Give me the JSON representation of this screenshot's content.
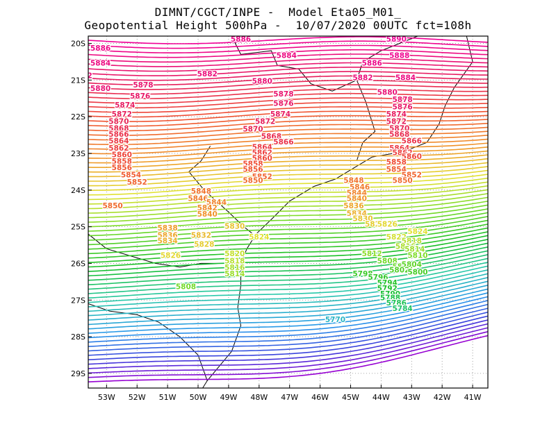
{
  "title_line1": "DIMNT/CGCT/INPE -  Model Eta05_M01_",
  "title_line2": "Geopotential Height 500hPa -  10/07/2020 00UTC fct=108h",
  "map": {
    "lon_range": [
      -53.6,
      -40.5
    ],
    "lat_range": [
      -29.4,
      -19.8
    ],
    "lon_ticks": [
      "53W",
      "52W",
      "51W",
      "50W",
      "49W",
      "48W",
      "47W",
      "46W",
      "45W",
      "44W",
      "43W",
      "42W",
      "41W"
    ],
    "lat_ticks": [
      "20S",
      "21S",
      "22S",
      "23S",
      "24S",
      "25S",
      "26S",
      "27S",
      "28S",
      "29S"
    ],
    "contour_interval_m": 2,
    "contour_range_m": [
      5740,
      5890
    ]
  },
  "contour_labels": [
    {
      "text": "5888",
      "lon": -45.9,
      "lat": -19.75
    },
    {
      "text": "5890",
      "lon": -43.5,
      "lat": -19.95
    },
    {
      "text": "5886",
      "lon": -53.2,
      "lat": -20.2
    },
    {
      "text": "5886",
      "lon": -48.6,
      "lat": -19.95
    },
    {
      "text": "5888",
      "lon": -43.4,
      "lat": -20.4
    },
    {
      "text": "5884",
      "lon": -53.2,
      "lat": -20.6
    },
    {
      "text": "5884",
      "lon": -47.1,
      "lat": -20.4
    },
    {
      "text": "5886",
      "lon": -44.3,
      "lat": -20.6
    },
    {
      "text": "5882",
      "lon": -53.8,
      "lat": -20.95
    },
    {
      "text": "5882",
      "lon": -49.7,
      "lat": -20.9
    },
    {
      "text": "5884",
      "lon": -43.2,
      "lat": -21.0
    },
    {
      "text": "5880",
      "lon": -53.2,
      "lat": -21.3
    },
    {
      "text": "5878",
      "lon": -51.8,
      "lat": -21.2
    },
    {
      "text": "5880",
      "lon": -47.9,
      "lat": -21.1
    },
    {
      "text": "5882",
      "lon": -44.6,
      "lat": -21.0
    },
    {
      "text": "5876",
      "lon": -51.9,
      "lat": -21.5
    },
    {
      "text": "5878",
      "lon": -47.2,
      "lat": -21.45
    },
    {
      "text": "5880",
      "lon": -43.8,
      "lat": -21.4
    },
    {
      "text": "5874",
      "lon": -52.4,
      "lat": -21.75
    },
    {
      "text": "5876",
      "lon": -47.2,
      "lat": -21.7
    },
    {
      "text": "5878",
      "lon": -43.3,
      "lat": -21.6
    },
    {
      "text": "5876",
      "lon": -43.3,
      "lat": -21.8
    },
    {
      "text": "5872",
      "lon": -52.5,
      "lat": -22.0
    },
    {
      "text": "5874",
      "lon": -47.3,
      "lat": -22.0
    },
    {
      "text": "5874",
      "lon": -43.5,
      "lat": -22.0
    },
    {
      "text": "5870",
      "lon": -52.6,
      "lat": -22.2
    },
    {
      "text": "5872",
      "lon": -47.8,
      "lat": -22.2
    },
    {
      "text": "5872",
      "lon": -43.5,
      "lat": -22.2
    },
    {
      "text": "5868",
      "lon": -52.6,
      "lat": -22.38
    },
    {
      "text": "5870",
      "lon": -48.2,
      "lat": -22.4
    },
    {
      "text": "5870",
      "lon": -43.4,
      "lat": -22.38
    },
    {
      "text": "5866",
      "lon": -52.6,
      "lat": -22.55
    },
    {
      "text": "5868",
      "lon": -47.6,
      "lat": -22.6
    },
    {
      "text": "5868",
      "lon": -43.4,
      "lat": -22.55
    },
    {
      "text": "5864",
      "lon": -52.6,
      "lat": -22.73
    },
    {
      "text": "5866",
      "lon": -47.2,
      "lat": -22.75
    },
    {
      "text": "5866",
      "lon": -43.0,
      "lat": -22.73
    },
    {
      "text": "5862",
      "lon": -52.6,
      "lat": -22.92
    },
    {
      "text": "5864",
      "lon": -47.9,
      "lat": -22.9
    },
    {
      "text": "5864",
      "lon": -43.4,
      "lat": -22.92
    },
    {
      "text": "5860",
      "lon": -52.5,
      "lat": -23.1
    },
    {
      "text": "5862",
      "lon": -47.9,
      "lat": -23.05
    },
    {
      "text": "5862",
      "lon": -43.3,
      "lat": -23.05
    },
    {
      "text": "5858",
      "lon": -52.5,
      "lat": -23.28
    },
    {
      "text": "5860",
      "lon": -47.9,
      "lat": -23.2
    },
    {
      "text": "5860",
      "lon": -43.0,
      "lat": -23.15
    },
    {
      "text": "5856",
      "lon": -52.5,
      "lat": -23.45
    },
    {
      "text": "5858",
      "lon": -48.2,
      "lat": -23.35
    },
    {
      "text": "5858",
      "lon": -43.5,
      "lat": -23.3
    },
    {
      "text": "5854",
      "lon": -52.2,
      "lat": -23.65
    },
    {
      "text": "5856",
      "lon": -48.2,
      "lat": -23.5
    },
    {
      "text": "5854",
      "lon": -43.5,
      "lat": -23.5
    },
    {
      "text": "5852",
      "lon": -52.0,
      "lat": -23.85
    },
    {
      "text": "5852",
      "lon": -47.9,
      "lat": -23.7
    },
    {
      "text": "5852",
      "lon": -43.0,
      "lat": -23.65
    },
    {
      "text": "5850",
      "lon": -48.2,
      "lat": -23.8
    },
    {
      "text": "5850",
      "lon": -43.3,
      "lat": -23.8
    },
    {
      "text": "5848",
      "lon": -44.9,
      "lat": -23.8
    },
    {
      "text": "5846",
      "lon": -44.7,
      "lat": -23.98
    },
    {
      "text": "5848",
      "lon": -49.9,
      "lat": -24.1
    },
    {
      "text": "5844",
      "lon": -44.8,
      "lat": -24.15
    },
    {
      "text": "5846",
      "lon": -50.0,
      "lat": -24.3
    },
    {
      "text": "5844",
      "lon": -49.4,
      "lat": -24.4
    },
    {
      "text": "5840",
      "lon": -44.8,
      "lat": -24.3
    },
    {
      "text": "5842",
      "lon": -49.7,
      "lat": -24.55
    },
    {
      "text": "5850",
      "lon": -52.8,
      "lat": -24.5
    },
    {
      "text": "5836",
      "lon": -44.9,
      "lat": -24.5
    },
    {
      "text": "5840",
      "lon": -49.7,
      "lat": -24.72
    },
    {
      "text": "5834",
      "lon": -44.8,
      "lat": -24.7
    },
    {
      "text": "5830",
      "lon": -44.6,
      "lat": -24.85
    },
    {
      "text": "5828",
      "lon": -44.2,
      "lat": -25.0
    },
    {
      "text": "5830",
      "lon": -48.8,
      "lat": -25.05
    },
    {
      "text": "5826",
      "lon": -43.8,
      "lat": -25.0
    },
    {
      "text": "5838",
      "lon": -51.0,
      "lat": -25.1
    },
    {
      "text": "5824",
      "lon": -42.8,
      "lat": -25.2
    },
    {
      "text": "5836",
      "lon": -51.0,
      "lat": -25.3
    },
    {
      "text": "5832",
      "lon": -49.9,
      "lat": -25.3
    },
    {
      "text": "5824",
      "lon": -48.0,
      "lat": -25.35
    },
    {
      "text": "5822",
      "lon": -43.5,
      "lat": -25.35
    },
    {
      "text": "5834",
      "lon": -51.0,
      "lat": -25.45
    },
    {
      "text": "5818",
      "lon": -43.0,
      "lat": -25.45
    },
    {
      "text": "5828",
      "lon": -49.8,
      "lat": -25.55
    },
    {
      "text": "5816",
      "lon": -43.2,
      "lat": -25.6
    },
    {
      "text": "5814",
      "lon": -42.9,
      "lat": -25.68
    },
    {
      "text": "5812",
      "lon": -44.3,
      "lat": -25.8
    },
    {
      "text": "5810",
      "lon": -42.8,
      "lat": -25.85
    },
    {
      "text": "5826",
      "lon": -50.9,
      "lat": -25.85
    },
    {
      "text": "5820",
      "lon": -48.8,
      "lat": -25.8
    },
    {
      "text": "5808",
      "lon": -43.8,
      "lat": -26.0
    },
    {
      "text": "5818",
      "lon": -48.8,
      "lat": -26.0
    },
    {
      "text": "5806",
      "lon": -43.3,
      "lat": -26.15
    },
    {
      "text": "5804",
      "lon": -43.0,
      "lat": -26.1
    },
    {
      "text": "5802",
      "lon": -43.4,
      "lat": -26.25
    },
    {
      "text": "5816",
      "lon": -48.8,
      "lat": -26.18
    },
    {
      "text": "5800",
      "lon": -42.8,
      "lat": -26.3
    },
    {
      "text": "5798",
      "lon": -44.6,
      "lat": -26.35
    },
    {
      "text": "5814",
      "lon": -48.8,
      "lat": -26.35
    },
    {
      "text": "5796",
      "lon": -44.1,
      "lat": -26.45
    },
    {
      "text": "5794",
      "lon": -43.8,
      "lat": -26.6
    },
    {
      "text": "5808",
      "lon": -50.4,
      "lat": -26.7
    },
    {
      "text": "5792",
      "lon": -43.8,
      "lat": -26.75
    },
    {
      "text": "5790",
      "lon": -43.7,
      "lat": -26.9
    },
    {
      "text": "5788",
      "lon": -43.7,
      "lat": -27.0
    },
    {
      "text": "5786",
      "lon": -43.5,
      "lat": -27.15
    },
    {
      "text": "5784",
      "lon": -43.3,
      "lat": -27.3
    },
    {
      "text": "5770",
      "lon": -45.5,
      "lat": -27.6
    }
  ]
}
